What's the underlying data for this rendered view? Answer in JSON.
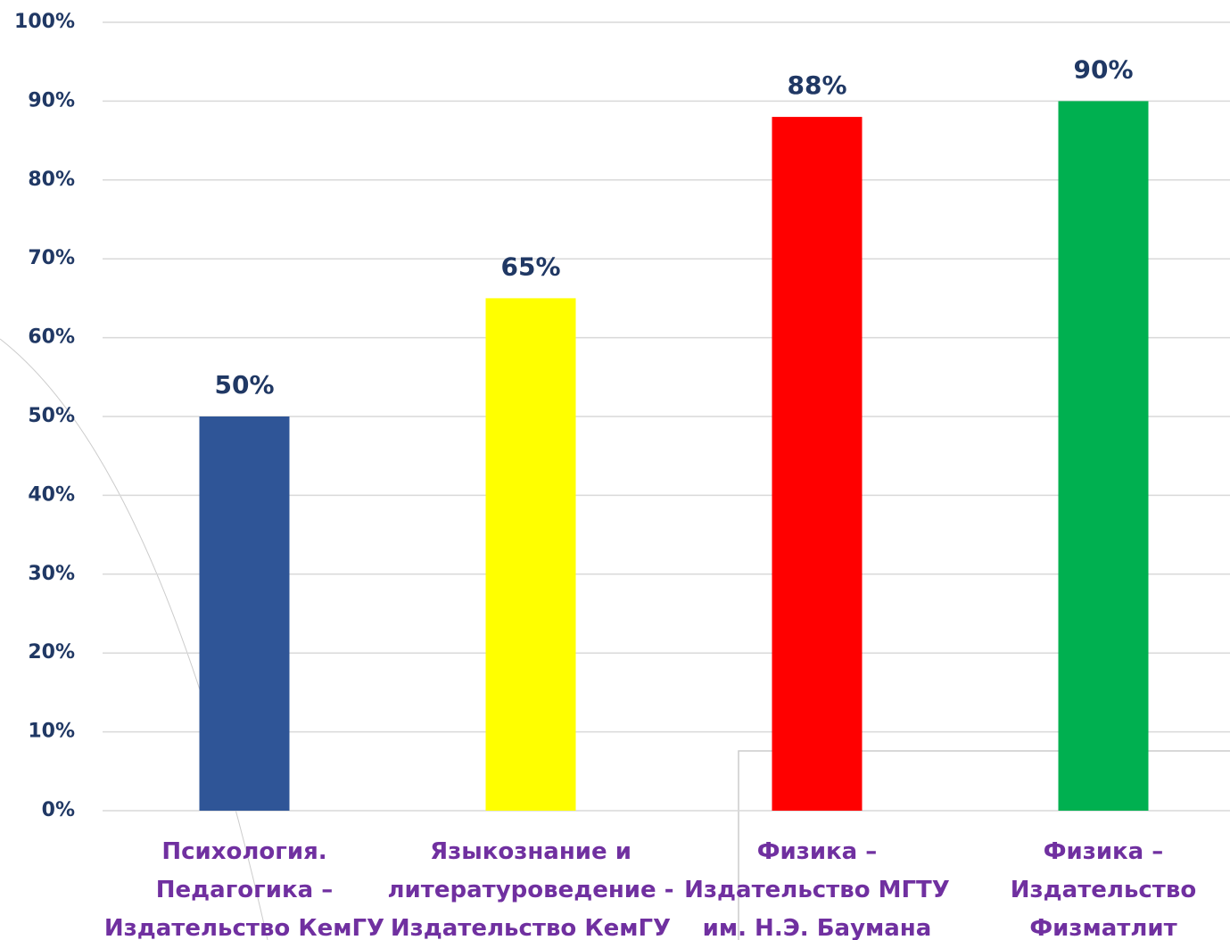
{
  "chart_data": {
    "type": "bar",
    "categories": [
      "Психология.\nПедагогика –\nИздательство КемГУ",
      "Языкознание и\nлитературоведение -\nИздательство КемГУ",
      "Физика –\nИздательство МГТУ\nим. Н.Э. Баумана",
      "Физика –\nИздательство\nФизматлит"
    ],
    "values": [
      50,
      65,
      88,
      90
    ],
    "value_labels": [
      "50%",
      "65%",
      "88%",
      "90%"
    ],
    "colors": [
      "#2f5597",
      "#ffff00",
      "#ff0000",
      "#00b050"
    ],
    "ylim": [
      0,
      100
    ],
    "yticks": [
      {
        "value": 0,
        "label": "0%"
      },
      {
        "value": 10,
        "label": "10%"
      },
      {
        "value": 20,
        "label": "20%"
      },
      {
        "value": 30,
        "label": "30%"
      },
      {
        "value": 40,
        "label": "40%"
      },
      {
        "value": 50,
        "label": "50%"
      },
      {
        "value": 60,
        "label": "60%"
      },
      {
        "value": 70,
        "label": "70%"
      },
      {
        "value": 80,
        "label": "80%"
      },
      {
        "value": 90,
        "label": "90%"
      },
      {
        "value": 100,
        "label": "100%"
      }
    ],
    "grid": true
  }
}
